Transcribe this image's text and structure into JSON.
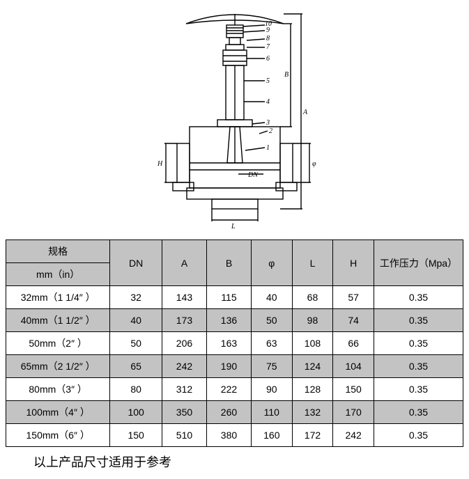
{
  "table": {
    "header": {
      "spec_top": "规格",
      "spec_bottom": "mm（in）",
      "dn": "DN",
      "a": "A",
      "b": "B",
      "phi": "φ",
      "l": "L",
      "h": "H",
      "pressure": "工作压力（Mpa）"
    },
    "rows": [
      {
        "spec": "32mm（1 1/4″ ）",
        "dn": "32",
        "a": "143",
        "b": "115",
        "phi": "40",
        "l": "68",
        "h": "57",
        "p": "0.35",
        "shade": false
      },
      {
        "spec": "40mm（1 1/2″ ）",
        "dn": "40",
        "a": "173",
        "b": "136",
        "phi": "50",
        "l": "98",
        "h": "74",
        "p": "0.35",
        "shade": true
      },
      {
        "spec": "50mm（2″ ）",
        "dn": "50",
        "a": "206",
        "b": "163",
        "phi": "63",
        "l": "108",
        "h": "66",
        "p": "0.35",
        "shade": false
      },
      {
        "spec": "65mm（2 1/2″ ）",
        "dn": "65",
        "a": "242",
        "b": "190",
        "phi": "75",
        "l": "124",
        "h": "104",
        "p": "0.35",
        "shade": true
      },
      {
        "spec": "80mm（3″ ）",
        "dn": "80",
        "a": "312",
        "b": "222",
        "phi": "90",
        "l": "128",
        "h": "150",
        "p": "0.35",
        "shade": false
      },
      {
        "spec": "100mm（4″ ）",
        "dn": "100",
        "a": "350",
        "b": "260",
        "phi": "110",
        "l": "132",
        "h": "170",
        "p": "0.35",
        "shade": true
      },
      {
        "spec": "150mm（6″ ）",
        "dn": "150",
        "a": "510",
        "b": "380",
        "phi": "160",
        "l": "172",
        "h": "242",
        "p": "0.35",
        "shade": false
      }
    ]
  },
  "note": "以上产品尺寸适用于参考",
  "diagram": {
    "stroke": "#000000",
    "bg": "#ffffff",
    "callouts": [
      "10",
      "9",
      "8",
      "7",
      "6",
      "5",
      "4",
      "3",
      "2",
      "1"
    ],
    "dim_labels": {
      "A": "A",
      "B": "B",
      "H": "H",
      "L": "L",
      "DN": "DN",
      "phi": "φ"
    }
  },
  "colors": {
    "header_bg": "#c3c3c3",
    "row_shade_bg": "#c3c3c3",
    "border": "#000000",
    "text": "#000000",
    "page_bg": "#ffffff"
  }
}
